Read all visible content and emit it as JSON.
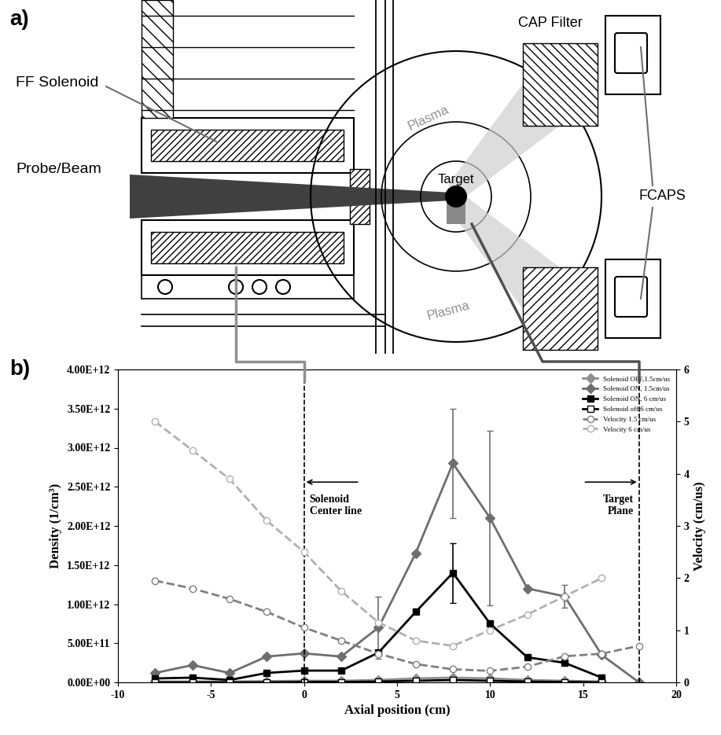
{
  "figure": {
    "panel_labels": [
      "a)",
      "b)"
    ]
  },
  "diagram": {
    "labels": {
      "ff_solenoid": "FF Solenoid",
      "probe_beam": "Probe/Beam",
      "cap_filter": "CAP Filter",
      "plasma": [
        "Plasma",
        "Plasma"
      ],
      "target": "Target",
      "fcaps": "FCAPS"
    }
  },
  "chart_data": {
    "type": "line",
    "x_label": "Axial position (cm)",
    "y_label": "Density (1/cm³)",
    "y2_label": "Velocity (cm/us)",
    "xlim": [
      -10,
      20
    ],
    "xticks": [
      -10,
      -5,
      0,
      5,
      10,
      15,
      20
    ],
    "ylim": [
      0,
      4000000000000.0
    ],
    "yticks": [
      {
        "value": 0,
        "label": "0.00E+00"
      },
      {
        "value": 500000000000.0,
        "label": "5.00E+11"
      },
      {
        "value": 1000000000000.0,
        "label": "1.00E+12"
      },
      {
        "value": 1500000000000.0,
        "label": "1.50E+12"
      },
      {
        "value": 2000000000000.0,
        "label": "2.00E+12"
      },
      {
        "value": 2500000000000.0,
        "label": "2.50E+12"
      },
      {
        "value": 3000000000000.0,
        "label": "3.00E+12"
      },
      {
        "value": 3500000000000.0,
        "label": "3.50E+12"
      },
      {
        "value": 4000000000000.0,
        "label": "4.00E+12"
      }
    ],
    "y2lim": [
      0,
      6
    ],
    "y2ticks": [
      0,
      1,
      2,
      3,
      4,
      5,
      6
    ],
    "legend": "upper right",
    "annotations": [
      {
        "text": "Solenoid\nCenter line",
        "x": 0,
        "direction": "left"
      },
      {
        "text": "Target\nPlane",
        "x": 18,
        "direction": "right"
      }
    ],
    "series": [
      {
        "name": "Solenoid OFF,1.5cm/us",
        "color": "#909090",
        "marker": "diamond",
        "line_style": "solid",
        "x": [
          -8,
          -6,
          -4,
          -2,
          0,
          2,
          4,
          6,
          8,
          10,
          12,
          14,
          16
        ],
        "values": [
          10000000000.0,
          10000000000.0,
          10000000000.0,
          15000000000.0,
          20000000000.0,
          20000000000.0,
          30000000000.0,
          50000000000.0,
          60000000000.0,
          50000000000.0,
          30000000000.0,
          20000000000.0,
          10000000000.0
        ]
      },
      {
        "name": "Solenoid ON, 1.5cm/us",
        "color": "#6e6e6e",
        "marker": "diamond",
        "line_style": "solid",
        "x": [
          -8,
          -6,
          -4,
          -2,
          0,
          2,
          4,
          6,
          8,
          10,
          12,
          14,
          16,
          18
        ],
        "values": [
          120000000000.0,
          220000000000.0,
          120000000000.0,
          330000000000.0,
          370000000000.0,
          330000000000.0,
          700000000000.0,
          1650000000000.0,
          2800000000000.0,
          2100000000000.0,
          1200000000000.0,
          1100000000000.0,
          350000000000.0,
          0
        ],
        "errors": [
          null,
          null,
          null,
          null,
          null,
          null,
          400000000000.0,
          null,
          700000000000.0,
          1120000000000.0,
          null,
          150000000000.0,
          null,
          null
        ]
      },
      {
        "name": "Solenoid ON, 6 cm/us",
        "color": "#000000",
        "marker": "square",
        "line_style": "solid",
        "x": [
          -8,
          -6,
          -4,
          -2,
          0,
          2,
          4,
          6,
          8,
          10,
          12,
          14,
          16
        ],
        "values": [
          50000000000.0,
          60000000000.0,
          30000000000.0,
          120000000000.0,
          150000000000.0,
          150000000000.0,
          380000000000.0,
          900000000000.0,
          1400000000000.0,
          750000000000.0,
          320000000000.0,
          250000000000.0,
          60000000000.0
        ],
        "errors": [
          null,
          null,
          null,
          null,
          null,
          null,
          null,
          null,
          380000000000.0,
          null,
          null,
          null,
          null
        ]
      },
      {
        "name": "Solenoid off,6 cm/us",
        "color": "#000000",
        "marker": "open_square",
        "line_style": "solid",
        "x": [
          -8,
          -6,
          -4,
          -2,
          0,
          2,
          4,
          6,
          8,
          10,
          12,
          14,
          16
        ],
        "values": [
          0,
          0,
          0,
          0,
          5000000000.0,
          5000000000.0,
          10000000000.0,
          20000000000.0,
          30000000000.0,
          20000000000.0,
          10000000000.0,
          5000000000.0,
          0
        ]
      },
      {
        "name": "Velocity 1.5 cm/us",
        "color": "#808080",
        "marker": "open_circle",
        "line_style": "dashed",
        "axis": "y2",
        "x": [
          -8,
          -6,
          -4,
          -2,
          0,
          2,
          4,
          6,
          8,
          10,
          12,
          14,
          16,
          18
        ],
        "values": [
          1.95,
          1.8,
          1.6,
          1.35,
          1.05,
          0.8,
          0.55,
          0.35,
          0.25,
          0.22,
          0.3,
          0.5,
          0.55,
          0.7
        ]
      },
      {
        "name": "Velocity 6 cm/us",
        "color": "#b0b0b0",
        "marker": "open_circle",
        "line_style": "dashed",
        "axis": "y2",
        "x": [
          -8,
          -6,
          -4,
          -2,
          0,
          2,
          4,
          6,
          8,
          10,
          12,
          14,
          16
        ],
        "values": [
          5.0,
          4.45,
          3.9,
          3.1,
          2.5,
          1.75,
          1.15,
          0.8,
          0.7,
          1.0,
          1.3,
          1.65,
          2.0
        ]
      }
    ]
  }
}
